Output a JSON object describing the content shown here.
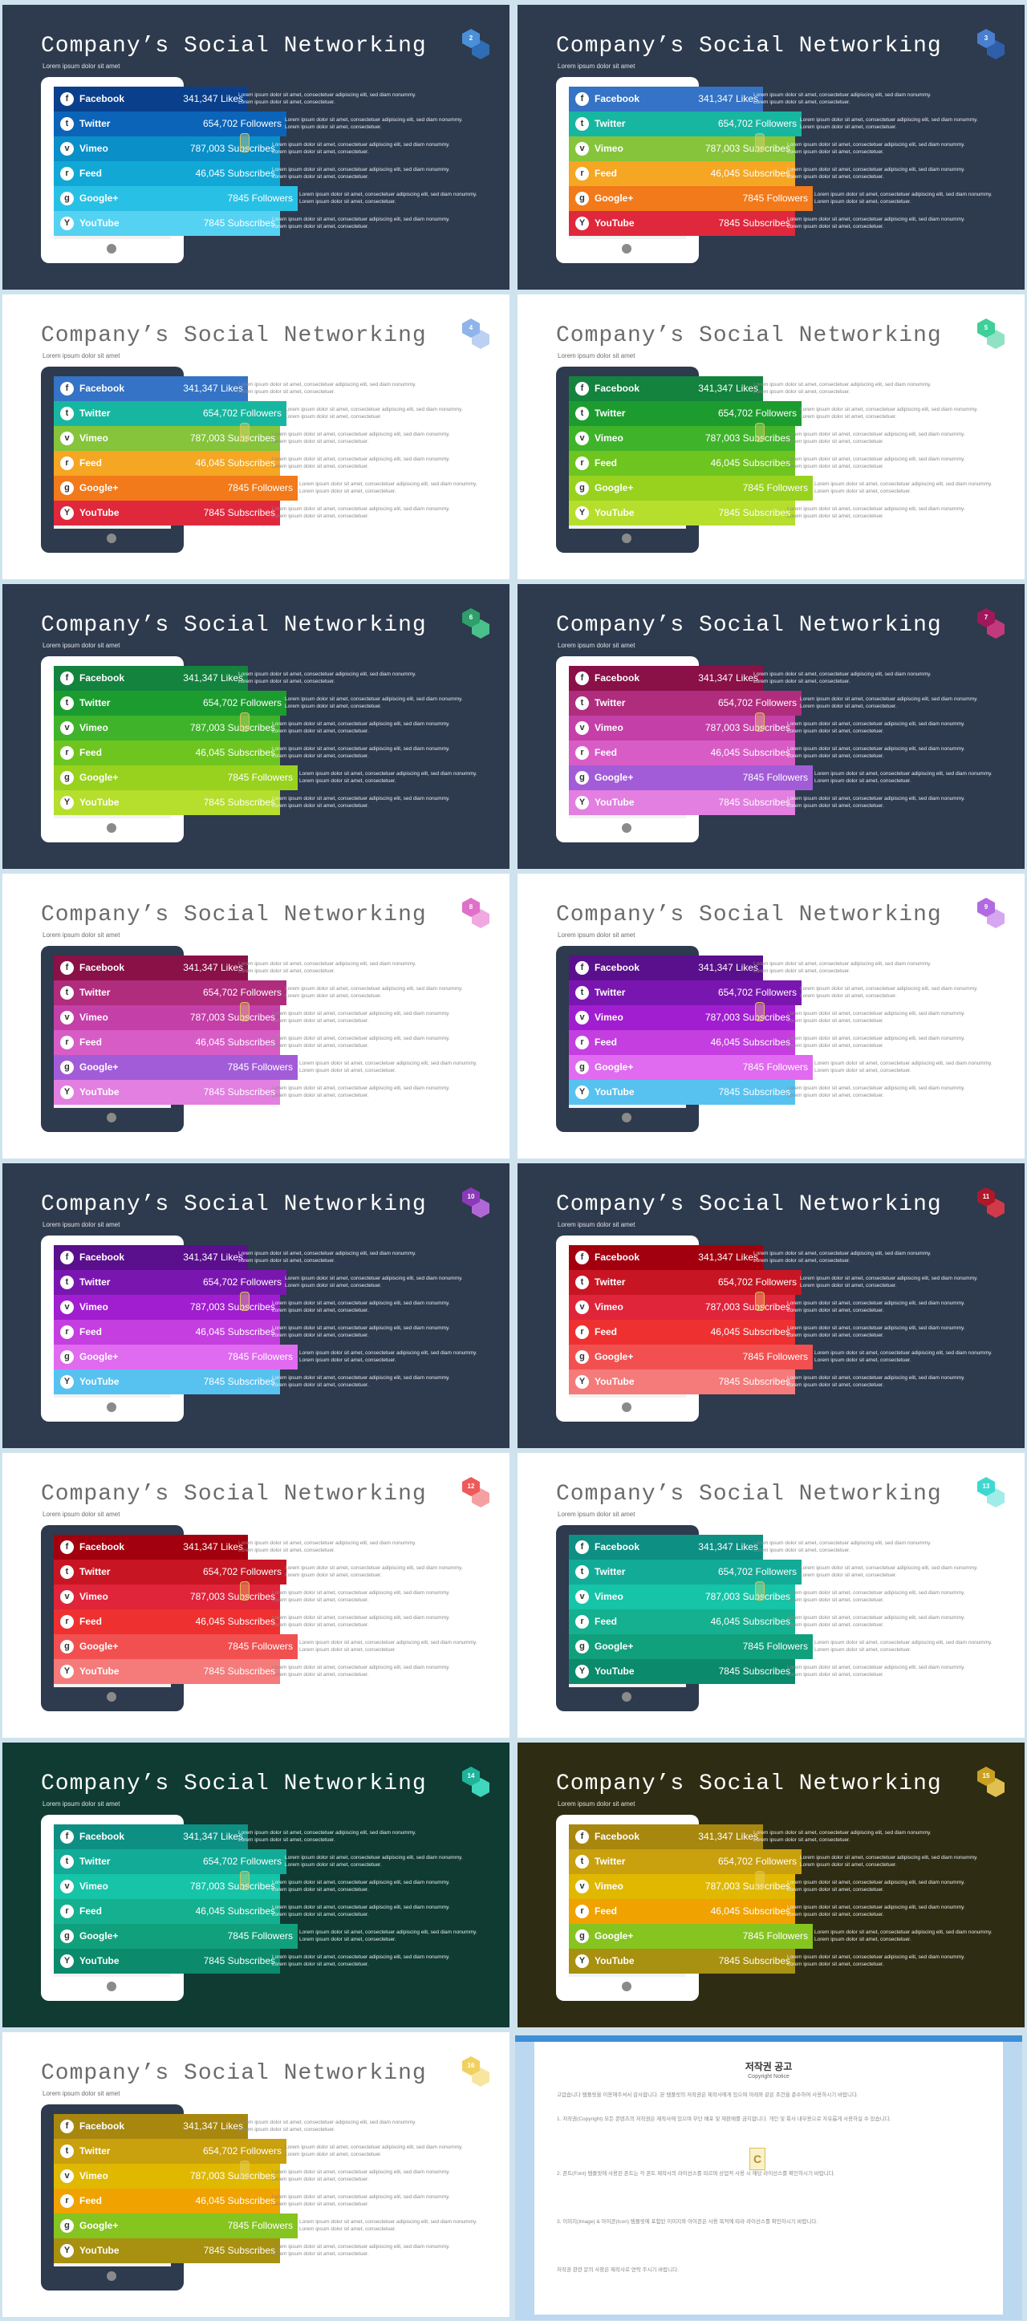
{
  "slide": {
    "title": "Company’s Social Networking",
    "subtitle": "Lorem ipsum dolor sit amet",
    "description": "Lorem ipsum dolor sit amet, consectetuer adipiscing elit, sed diam nonummy. Lorem ipsum dolor sit amet, consectetuer.",
    "networks": [
      {
        "name": "Facebook",
        "value": "341,347 Likes",
        "icon": "facebook-icon",
        "glyph": "f"
      },
      {
        "name": "Twitter",
        "value": "654,702 Followers",
        "icon": "twitter-icon",
        "glyph": "t"
      },
      {
        "name": "Vimeo",
        "value": "787,003 Subscribes",
        "icon": "vimeo-icon",
        "glyph": "v"
      },
      {
        "name": "Feed",
        "value": "46,045 Subscribes",
        "icon": "rss-feed-icon",
        "glyph": "r"
      },
      {
        "name": "Google+",
        "value": "7845 Followers",
        "icon": "google-plus-icon",
        "glyph": "g"
      },
      {
        "name": "YouTube",
        "value": "7845 Subscribes",
        "icon": "youtube-icon",
        "glyph": "Y"
      }
    ]
  },
  "slides": [
    {
      "num": "2",
      "bg": "#2e3a4d",
      "theme": "dark",
      "tablet": "#ffffff",
      "badge": [
        "#4a90d9",
        "#2f6db5"
      ],
      "colors": [
        "#0a3f8c",
        "#0b64b8",
        "#0b8fc8",
        "#11a8d6",
        "#29c0e6",
        "#55d2f2"
      ]
    },
    {
      "num": "3",
      "bg": "#2e3a4d",
      "theme": "dark",
      "tablet": "#ffffff",
      "badge": [
        "#4a7fd0",
        "#2f5fa8"
      ],
      "colors": [
        "#3473c5",
        "#17b6a0",
        "#86c43c",
        "#f5a623",
        "#f27a1a",
        "#e0283d"
      ]
    },
    {
      "num": "4",
      "bg": "#ffffff",
      "theme": "light",
      "tablet": "#2e3a4d",
      "badge": [
        "#8fb4ea",
        "#bcd1f2"
      ],
      "colors": [
        "#3473c5",
        "#17b6a0",
        "#86c43c",
        "#f5a623",
        "#f27a1a",
        "#e0283d"
      ]
    },
    {
      "num": "5",
      "bg": "#ffffff",
      "theme": "light",
      "tablet": "#2e3a4d",
      "badge": [
        "#3fcf9a",
        "#8fe3c4"
      ],
      "colors": [
        "#13833e",
        "#1c9c2f",
        "#3fb42a",
        "#6ec51f",
        "#98d21e",
        "#b5de2d"
      ]
    },
    {
      "num": "6",
      "bg": "#2e3a4d",
      "theme": "dark",
      "tablet": "#ffffff",
      "badge": [
        "#2e9e6a",
        "#4ac08a"
      ],
      "colors": [
        "#13833e",
        "#1c9c2f",
        "#3fb42a",
        "#6ec51f",
        "#98d21e",
        "#b5de2d"
      ]
    },
    {
      "num": "7",
      "bg": "#2e3a4d",
      "theme": "dark",
      "tablet": "#ffffff",
      "badge": [
        "#a0185a",
        "#c23a7d"
      ],
      "colors": [
        "#8a1048",
        "#b02c7d",
        "#c43fa8",
        "#d85cc6",
        "#a35cd8",
        "#e27fe0"
      ]
    },
    {
      "num": "8",
      "bg": "#ffffff",
      "theme": "light",
      "tablet": "#2e3a4d",
      "badge": [
        "#e070c8",
        "#f0a8e0"
      ],
      "colors": [
        "#8a1048",
        "#b02c7d",
        "#c43fa8",
        "#d85cc6",
        "#a35cd8",
        "#e27fe0"
      ]
    },
    {
      "num": "9",
      "bg": "#ffffff",
      "theme": "light",
      "tablet": "#2e3a4d",
      "badge": [
        "#b26ae0",
        "#d6a6f0"
      ],
      "colors": [
        "#5a0f8c",
        "#7a16b0",
        "#a01ed0",
        "#c43ee0",
        "#e06af0",
        "#57c2f0"
      ]
    },
    {
      "num": "10",
      "bg": "#2e3a4d",
      "theme": "dark",
      "tablet": "#ffffff",
      "badge": [
        "#8a3ab8",
        "#b068d8"
      ],
      "colors": [
        "#5a0f8c",
        "#7a16b0",
        "#a01ed0",
        "#c43ee0",
        "#e06af0",
        "#57c2f0"
      ]
    },
    {
      "num": "11",
      "bg": "#2e3a4d",
      "theme": "dark",
      "tablet": "#ffffff",
      "badge": [
        "#b0182a",
        "#d03a4a"
      ],
      "colors": [
        "#a3000f",
        "#c81523",
        "#e0243a",
        "#ee3030",
        "#f25050",
        "#f57a7a"
      ]
    },
    {
      "num": "12",
      "bg": "#ffffff",
      "theme": "light",
      "tablet": "#2e3a4d",
      "badge": [
        "#ee5a5a",
        "#f5a0a0"
      ],
      "colors": [
        "#a3000f",
        "#c81523",
        "#e0243a",
        "#ee3030",
        "#f25050",
        "#f57a7a"
      ]
    },
    {
      "num": "13",
      "bg": "#ffffff",
      "theme": "light",
      "tablet": "#2e3a4d",
      "badge": [
        "#3fd8d0",
        "#9fece8"
      ],
      "colors": [
        "#0e8f84",
        "#12ab97",
        "#16c4a8",
        "#14b08f",
        "#10a07c",
        "#0b8a6c"
      ]
    },
    {
      "num": "14",
      "bg": "#0f3b32",
      "theme": "dark",
      "tablet": "#ffffff",
      "badge": [
        "#1fb39a",
        "#3fd8bd"
      ],
      "colors": [
        "#0e8f84",
        "#12ab97",
        "#16c4a8",
        "#14b08f",
        "#10a07c",
        "#0b8a6c"
      ]
    },
    {
      "num": "15",
      "bg": "#2e2c12",
      "theme": "dark",
      "tablet": "#ffffff",
      "badge": [
        "#c9a020",
        "#e0c050"
      ],
      "colors": [
        "#a8870f",
        "#c9a00d",
        "#e0b800",
        "#f0a200",
        "#86c420",
        "#a89010"
      ]
    },
    {
      "num": "16",
      "bg": "#ffffff",
      "theme": "light",
      "tablet": "#2e3a4d",
      "badge": [
        "#f0d060",
        "#f8e6a0"
      ],
      "colors": [
        "#a8870f",
        "#c9a00d",
        "#e0b800",
        "#f0a200",
        "#86c420",
        "#a89010"
      ]
    }
  ],
  "notice": {
    "title": "저작권 공고",
    "subtitle": "Copyright Notice",
    "paragraphs": [
      "고맙습니다 템플릿을 이용해주셔서 감사합니다. 본 템플릿의 저작권은 제작사에게 있으며 아래와 같은 조건을 준수하여 사용하시기 바랍니다.",
      "1. 저작권(Copyright) 모든 콘텐츠의 저작권은 제작사에 있으며 무단 배포 및 재판매를 금지합니다. 개인 및 회사 내부용으로 자유롭게 사용하실 수 있습니다.",
      "2. 폰트(Font) 템플릿에 사용된 폰트는 각 폰트 제작사의 라이선스를 따르며 상업적 사용 시 해당 라이선스를 확인하시기 바랍니다.",
      "3. 이미지(Image) & 아이콘(Icon) 템플릿에 포함된 이미지와 아이콘은 사용 목적에 따라 라이선스를 확인하시기 바랍니다.",
      "저작권 관련 문의 사항은 제작사로 연락 주시기 바랍니다."
    ]
  }
}
